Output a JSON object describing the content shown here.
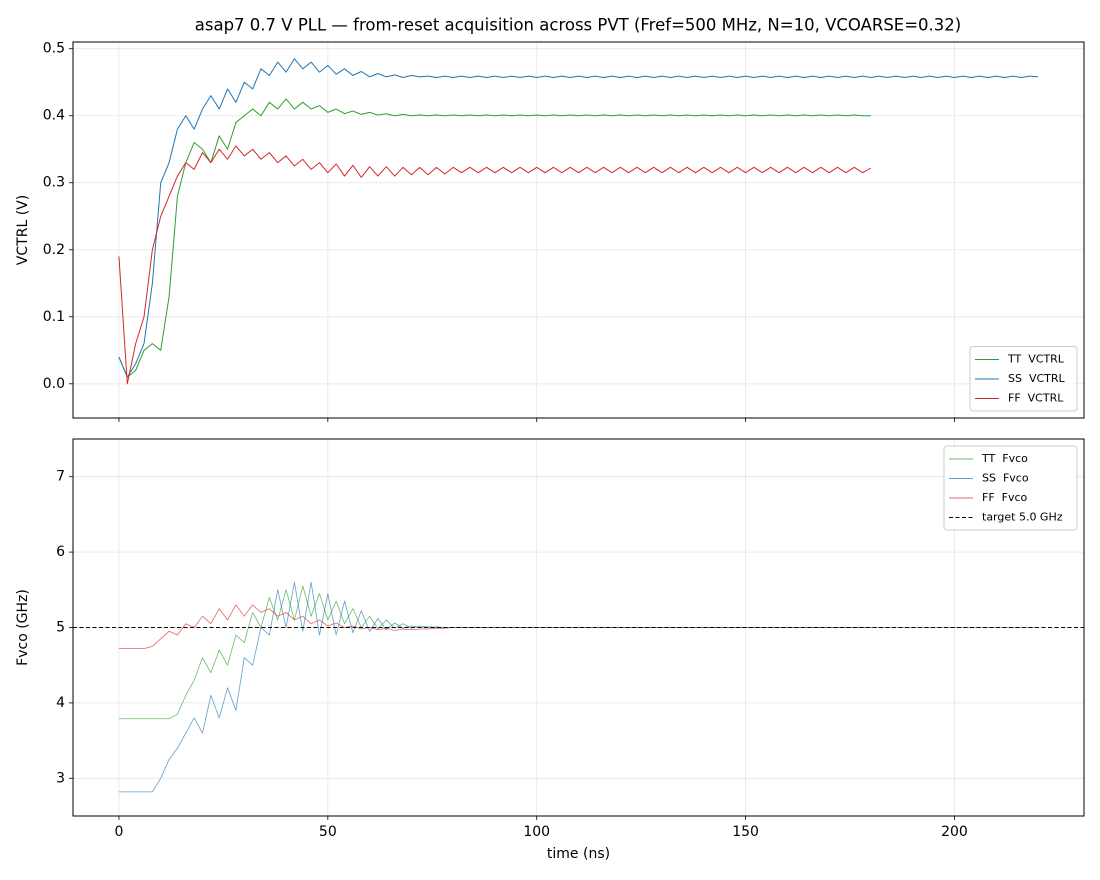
{
  "chart_data": [
    {
      "type": "line",
      "title": "asap7 0.7 V PLL — from-reset acquisition across PVT (Fref=500 MHz, N=10, VCOARSE=0.32)",
      "ylabel": "VCTRL (V)",
      "grid": true,
      "legend": "lower right",
      "show_xticklabels": false,
      "linewidth": 1.0,
      "alpha": 1.0,
      "xlim": [
        -11,
        231
      ],
      "xticks": [
        0,
        50,
        100,
        150,
        200
      ],
      "ylim": [
        -0.051,
        0.51
      ],
      "yticks": [
        {
          "value": 0,
          "label": "0.0"
        },
        {
          "value": 0.1,
          "label": "0.1"
        },
        {
          "value": 0.2,
          "label": "0.2"
        },
        {
          "value": 0.3,
          "label": "0.3"
        },
        {
          "value": 0.4,
          "label": "0.4"
        },
        {
          "value": 0.5,
          "label": "0.5"
        }
      ],
      "x": [
        0,
        2,
        4,
        6,
        8,
        10,
        12,
        14,
        16,
        18,
        20,
        22,
        24,
        26,
        28,
        30,
        32,
        34,
        36,
        38,
        40,
        42,
        44,
        46,
        48,
        50,
        52,
        54,
        56,
        58,
        60,
        62,
        64,
        66,
        68,
        70,
        72,
        74,
        76,
        78,
        80,
        82,
        84,
        86,
        88,
        90,
        92,
        94,
        96,
        98,
        100,
        102,
        104,
        106,
        108,
        110,
        112,
        114,
        116,
        118,
        120,
        122,
        124,
        126,
        128,
        130,
        132,
        134,
        136,
        138,
        140,
        142,
        144,
        146,
        148,
        150,
        152,
        154,
        156,
        158,
        160,
        162,
        164,
        166,
        168,
        170,
        172,
        174,
        176,
        178,
        180,
        182,
        184,
        186,
        188,
        190,
        192,
        194,
        196,
        198,
        200,
        202,
        204,
        206,
        208,
        210,
        212,
        214,
        216,
        218,
        220
      ],
      "series": [
        {
          "name": "TT  VCTRL",
          "color": "#2ca02c",
          "values": [
            0.04,
            0.01,
            0.02,
            0.05,
            0.06,
            0.05,
            0.13,
            0.28,
            0.33,
            0.36,
            0.35,
            0.33,
            0.37,
            0.35,
            0.39,
            0.4,
            0.41,
            0.4,
            0.42,
            0.41,
            0.425,
            0.41,
            0.42,
            0.41,
            0.415,
            0.405,
            0.41,
            0.403,
            0.407,
            0.402,
            0.405,
            0.401,
            0.403,
            0.4,
            0.402,
            0.4,
            0.401,
            0.4,
            0.401,
            0.4,
            0.401,
            0.4,
            0.401,
            0.4,
            0.401,
            0.4,
            0.401,
            0.4,
            0.401,
            0.4,
            0.401,
            0.4,
            0.401,
            0.4,
            0.401,
            0.4,
            0.401,
            0.4,
            0.401,
            0.4,
            0.401,
            0.4,
            0.401,
            0.4,
            0.401,
            0.4,
            0.401,
            0.4,
            0.401,
            0.4,
            0.401,
            0.4,
            0.401,
            0.4,
            0.401,
            0.4,
            0.401,
            0.4,
            0.401,
            0.4,
            0.401,
            0.4,
            0.401,
            0.4,
            0.401,
            0.4,
            0.401,
            0.4,
            0.401,
            0.4,
            0.4,
            null,
            null,
            null,
            null,
            null,
            null,
            null,
            null,
            null,
            null,
            null,
            null,
            null,
            null,
            null,
            null,
            null,
            null,
            null,
            null
          ]
        },
        {
          "name": "SS  VCTRL",
          "color": "#1f77b4",
          "values": [
            0.04,
            0.01,
            0.03,
            0.06,
            0.15,
            0.3,
            0.33,
            0.38,
            0.4,
            0.38,
            0.41,
            0.43,
            0.41,
            0.44,
            0.42,
            0.45,
            0.44,
            0.47,
            0.46,
            0.48,
            0.465,
            0.485,
            0.47,
            0.48,
            0.465,
            0.475,
            0.462,
            0.47,
            0.46,
            0.466,
            0.458,
            0.463,
            0.458,
            0.461,
            0.457,
            0.46,
            0.458,
            0.459,
            0.457,
            0.459,
            0.457,
            0.459,
            0.457,
            0.459,
            0.457,
            0.459,
            0.457,
            0.459,
            0.457,
            0.459,
            0.457,
            0.459,
            0.457,
            0.459,
            0.457,
            0.459,
            0.457,
            0.459,
            0.457,
            0.459,
            0.457,
            0.459,
            0.457,
            0.459,
            0.457,
            0.459,
            0.457,
            0.459,
            0.457,
            0.459,
            0.457,
            0.459,
            0.457,
            0.459,
            0.457,
            0.459,
            0.457,
            0.459,
            0.457,
            0.459,
            0.457,
            0.459,
            0.457,
            0.459,
            0.457,
            0.459,
            0.457,
            0.459,
            0.457,
            0.459,
            0.457,
            0.459,
            0.457,
            0.459,
            0.457,
            0.459,
            0.457,
            0.459,
            0.457,
            0.459,
            0.457,
            0.459,
            0.457,
            0.459,
            0.457,
            0.459,
            0.457,
            0.459,
            0.457,
            0.459,
            0.458
          ]
        },
        {
          "name": "FF  VCTRL",
          "color": "#d62728",
          "values": [
            0.19,
            0.0,
            0.06,
            0.1,
            0.2,
            0.25,
            0.28,
            0.31,
            0.33,
            0.32,
            0.345,
            0.33,
            0.35,
            0.335,
            0.355,
            0.34,
            0.35,
            0.335,
            0.345,
            0.33,
            0.34,
            0.325,
            0.335,
            0.32,
            0.33,
            0.315,
            0.328,
            0.31,
            0.326,
            0.308,
            0.324,
            0.31,
            0.324,
            0.31,
            0.323,
            0.312,
            0.323,
            0.312,
            0.323,
            0.313,
            0.323,
            0.315,
            0.323,
            0.315,
            0.323,
            0.315,
            0.323,
            0.315,
            0.323,
            0.315,
            0.323,
            0.315,
            0.323,
            0.315,
            0.323,
            0.315,
            0.323,
            0.315,
            0.323,
            0.315,
            0.323,
            0.315,
            0.323,
            0.315,
            0.323,
            0.315,
            0.323,
            0.315,
            0.323,
            0.315,
            0.323,
            0.315,
            0.323,
            0.315,
            0.323,
            0.315,
            0.323,
            0.315,
            0.323,
            0.315,
            0.323,
            0.315,
            0.323,
            0.315,
            0.323,
            0.315,
            0.323,
            0.315,
            0.323,
            0.315,
            0.322,
            null,
            null,
            null,
            null,
            null,
            null,
            null,
            null,
            null,
            null,
            null,
            null,
            null,
            null,
            null,
            null,
            null,
            null,
            null,
            null
          ]
        }
      ]
    },
    {
      "type": "line",
      "ylabel": "Fvco (GHz)",
      "xlabel": "time (ns)",
      "grid": true,
      "legend": "upper right",
      "linewidth": 0.8,
      "alpha": 0.7,
      "xlim": [
        -11,
        231
      ],
      "xticks": [
        0,
        50,
        100,
        150,
        200
      ],
      "ylim": [
        2.5,
        7.5
      ],
      "yticks": [
        3,
        4,
        5,
        6,
        7
      ],
      "x": [
        0,
        2,
        4,
        6,
        8,
        10,
        12,
        14,
        16,
        18,
        20,
        22,
        24,
        26,
        28,
        30,
        32,
        34,
        36,
        38,
        40,
        42,
        44,
        46,
        48,
        50,
        52,
        54,
        56,
        58,
        60,
        62,
        64,
        66,
        68,
        70,
        72,
        74,
        76,
        78,
        80,
        82,
        84,
        86,
        88,
        90,
        92,
        94,
        96,
        98,
        100,
        102,
        104,
        106,
        108,
        110,
        112,
        114,
        116,
        118,
        120,
        122,
        124,
        126,
        128,
        130,
        132,
        134,
        136,
        138,
        140,
        142,
        144,
        146,
        148,
        150,
        152,
        154,
        156,
        158,
        160,
        162,
        164,
        166,
        168,
        170,
        172,
        174,
        176,
        178,
        180,
        182,
        184,
        186,
        188,
        190,
        192,
        194,
        196,
        198,
        200,
        202,
        204,
        206,
        208,
        210,
        212,
        214,
        216,
        218,
        220
      ],
      "series": [
        {
          "name": "TT  Fvco",
          "color": "#2ca02c",
          "values": [
            3.79,
            3.79,
            3.79,
            3.79,
            3.79,
            3.79,
            3.79,
            3.85,
            4.1,
            4.3,
            4.6,
            4.4,
            4.7,
            4.5,
            4.9,
            4.8,
            5.2,
            5.0,
            5.4,
            5.1,
            5.5,
            5.1,
            5.55,
            5.15,
            5.45,
            5.1,
            5.35,
            5.05,
            5.25,
            5.0,
            5.15,
            4.98,
            5.1,
            4.99,
            5.05,
            4.99,
            5.02,
            5.0,
            5.01,
            5.0,
            5.0,
            5.0,
            5.0,
            5.0,
            5.0,
            5.0,
            5.0,
            5.0,
            5.0,
            5.0,
            5.0,
            5.0,
            5.0,
            5.0,
            5.0,
            5.0,
            5.0,
            5.0,
            5.0,
            5.0,
            5.0,
            5.0,
            5.0,
            5.0,
            5.0,
            5.0,
            5.0,
            5.0,
            5.0,
            5.0,
            5.0,
            5.0,
            5.0,
            5.0,
            5.0,
            5.0,
            5.0,
            5.0,
            5.0,
            5.0,
            5.0,
            5.0,
            5.0,
            5.0,
            5.0,
            5.0,
            5.0,
            5.0,
            5.0,
            5.0,
            5.0,
            null,
            null,
            null,
            null,
            null,
            null,
            null,
            null,
            null,
            null,
            null,
            null,
            null,
            null,
            null,
            null,
            null,
            null,
            null,
            null
          ]
        },
        {
          "name": "SS  Fvco",
          "color": "#1f77b4",
          "values": [
            2.82,
            2.82,
            2.82,
            2.82,
            2.82,
            3.0,
            3.25,
            3.4,
            3.6,
            3.8,
            3.6,
            4.1,
            3.8,
            4.2,
            3.9,
            4.6,
            4.5,
            5.0,
            4.9,
            5.5,
            5.0,
            5.6,
            4.95,
            5.6,
            4.9,
            5.45,
            4.9,
            5.35,
            4.93,
            5.22,
            4.95,
            5.12,
            4.97,
            5.06,
            4.99,
            5.02,
            5.0,
            5.01,
            5.0,
            5.0,
            5.0,
            5.0,
            5.0,
            5.0,
            5.0,
            5.0,
            5.0,
            5.0,
            5.0,
            5.0,
            5.0,
            5.0,
            5.0,
            5.0,
            5.0,
            5.0,
            5.0,
            5.0,
            5.0,
            5.0,
            5.0,
            5.0,
            5.0,
            5.0,
            5.0,
            5.0,
            5.0,
            5.0,
            5.0,
            5.0,
            5.0,
            5.0,
            5.0,
            5.0,
            5.0,
            5.0,
            5.0,
            5.0,
            5.0,
            5.0,
            5.0,
            5.0,
            5.0,
            5.0,
            5.0,
            5.0,
            5.0,
            5.0,
            5.0,
            5.0,
            5.0,
            5.0,
            5.0,
            5.0,
            5.0,
            5.0,
            5.0,
            5.0,
            5.0,
            5.0,
            5.0,
            5.0,
            5.0,
            5.0,
            5.0,
            5.0,
            5.0,
            5.0,
            5.0,
            5.0,
            5.0
          ]
        },
        {
          "name": "FF  Fvco",
          "color": "#d62728",
          "values": [
            4.72,
            4.72,
            4.72,
            4.72,
            4.75,
            4.85,
            4.95,
            4.9,
            5.05,
            5.0,
            5.15,
            5.05,
            5.25,
            5.1,
            5.3,
            5.15,
            5.3,
            5.2,
            5.25,
            5.15,
            5.2,
            5.1,
            5.15,
            5.05,
            5.1,
            5.02,
            5.06,
            5.0,
            5.02,
            4.98,
            5.0,
            4.97,
            4.99,
            4.96,
            4.98,
            4.97,
            4.98,
            4.98,
            4.99,
            4.99,
            5.0,
            5.0,
            5.0,
            5.0,
            5.0,
            5.0,
            5.0,
            5.0,
            5.0,
            5.0,
            5.0,
            5.0,
            5.0,
            5.0,
            5.0,
            5.0,
            5.0,
            5.0,
            5.0,
            5.0,
            5.0,
            5.0,
            5.0,
            5.0,
            5.0,
            5.0,
            5.0,
            5.0,
            5.0,
            5.0,
            5.0,
            5.0,
            5.0,
            5.0,
            5.0,
            5.0,
            5.0,
            5.0,
            5.0,
            5.0,
            5.0,
            5.0,
            5.0,
            5.0,
            5.0,
            5.0,
            5.0,
            5.0,
            5.0,
            5.0,
            5.0,
            null,
            null,
            null,
            null,
            null,
            null,
            null,
            null,
            null,
            null,
            null,
            null,
            null,
            null,
            null,
            null,
            null,
            null,
            null,
            null
          ]
        }
      ],
      "hlines": [
        {
          "name": "target 5.0 GHz",
          "value": 5.0,
          "color": "#000000",
          "style": "dashed"
        }
      ]
    }
  ]
}
